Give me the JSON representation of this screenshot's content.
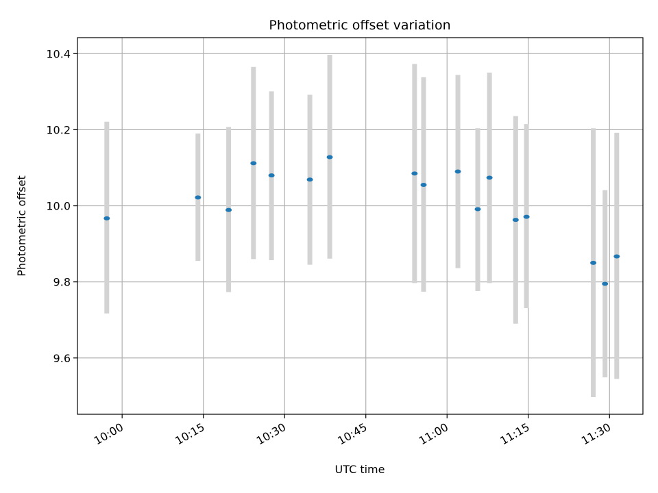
{
  "chart_data": {
    "type": "scatter",
    "title": "Photometric offset variation",
    "xlabel": "UTC time",
    "ylabel": "Photometric offset",
    "x_ticks": [
      "10:00",
      "10:15",
      "10:30",
      "10:45",
      "11:00",
      "11:15",
      "11:30"
    ],
    "y_ticks": [
      "9.6",
      "9.8",
      "10.0",
      "10.2",
      "10.4"
    ],
    "xlim": [
      "09:51:45",
      "11:36:10"
    ],
    "ylim": [
      9.452,
      10.442
    ],
    "grid": true,
    "colors": {
      "marker": "#1f77b4",
      "errorbar": "#d3d3d3",
      "grid": "#b0b0b0"
    },
    "points": [
      {
        "x": "09:57:10",
        "y": 9.967,
        "ylow": 9.717,
        "yhigh": 10.221
      },
      {
        "x": "10:14:00",
        "y": 10.022,
        "ylow": 9.855,
        "yhigh": 10.19
      },
      {
        "x": "10:19:40",
        "y": 9.989,
        "ylow": 9.773,
        "yhigh": 10.207
      },
      {
        "x": "10:24:15",
        "y": 10.112,
        "ylow": 9.86,
        "yhigh": 10.365
      },
      {
        "x": "10:27:35",
        "y": 10.08,
        "ylow": 9.857,
        "yhigh": 10.301
      },
      {
        "x": "10:34:40",
        "y": 10.069,
        "ylow": 9.845,
        "yhigh": 10.292
      },
      {
        "x": "10:38:20",
        "y": 10.128,
        "ylow": 9.861,
        "yhigh": 10.397
      },
      {
        "x": "10:54:00",
        "y": 10.085,
        "ylow": 9.797,
        "yhigh": 10.373
      },
      {
        "x": "10:55:40",
        "y": 10.055,
        "ylow": 9.774,
        "yhigh": 10.338
      },
      {
        "x": "11:02:00",
        "y": 10.09,
        "ylow": 9.836,
        "yhigh": 10.344
      },
      {
        "x": "11:05:40",
        "y": 9.991,
        "ylow": 9.776,
        "yhigh": 10.204
      },
      {
        "x": "11:07:50",
        "y": 10.074,
        "ylow": 9.797,
        "yhigh": 10.35
      },
      {
        "x": "11:12:40",
        "y": 9.963,
        "ylow": 9.69,
        "yhigh": 10.236
      },
      {
        "x": "11:14:40",
        "y": 9.971,
        "ylow": 9.731,
        "yhigh": 10.215
      },
      {
        "x": "11:27:00",
        "y": 9.85,
        "ylow": 9.497,
        "yhigh": 10.204
      },
      {
        "x": "11:29:10",
        "y": 9.795,
        "ylow": 9.549,
        "yhigh": 10.041
      },
      {
        "x": "11:31:20",
        "y": 9.867,
        "ylow": 9.545,
        "yhigh": 10.192
      }
    ]
  }
}
